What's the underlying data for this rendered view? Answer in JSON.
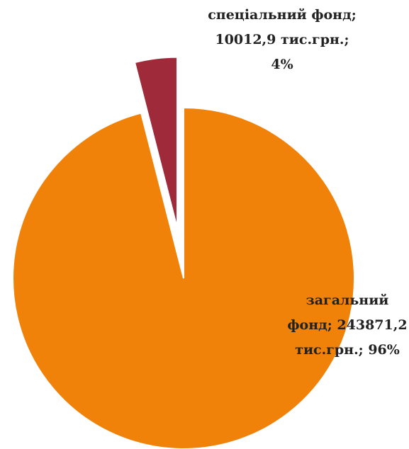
{
  "chart_data": {
    "type": "pie",
    "values": [
      96,
      4
    ],
    "value_labels": [
      "загальний фонд; 243871,2 тис.грн.; 96%",
      "спеціальний фонд; 10012,9 тис.грн.; 4%"
    ],
    "colors": [
      "#f0820a",
      "#9e2a3a"
    ]
  }
}
